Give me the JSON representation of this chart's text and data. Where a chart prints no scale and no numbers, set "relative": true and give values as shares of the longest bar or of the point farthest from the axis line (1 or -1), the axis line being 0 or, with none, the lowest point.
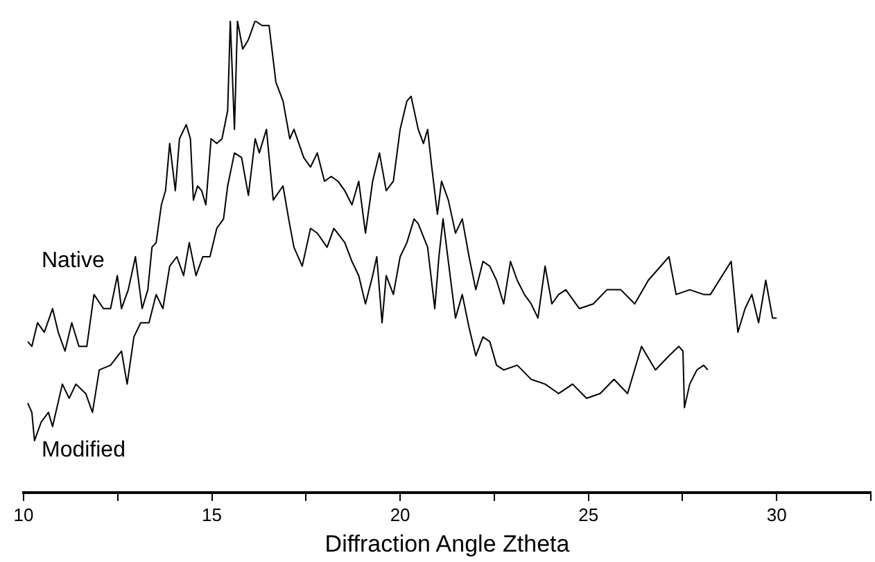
{
  "chart_data": {
    "type": "line",
    "relative": true,
    "xlabel": "Diffraction Angle Ztheta",
    "xlim": [
      10,
      32.5
    ],
    "xticks": [
      10,
      {
        "value": 12.5,
        "label": null
      },
      15,
      {
        "value": 17.5,
        "label": null
      },
      20,
      {
        "value": 22.5,
        "label": null
      },
      25,
      {
        "value": 27.5,
        "label": null
      },
      30,
      {
        "value": 32.5,
        "label": null
      }
    ],
    "grid": false,
    "legend": false,
    "marker": "none",
    "line_style": "solid",
    "series": [
      {
        "name": "Native",
        "color": "#000000",
        "x": [
          10.11,
          10.22,
          10.37,
          10.55,
          10.77,
          10.92,
          11.1,
          11.28,
          11.47,
          11.68,
          11.87,
          12.12,
          12.31,
          12.49,
          12.6,
          12.78,
          12.97,
          13.15,
          13.3,
          13.41,
          13.52,
          13.66,
          13.77,
          13.88,
          14.03,
          14.14,
          14.32,
          14.43,
          14.51,
          14.62,
          14.73,
          14.84,
          14.98,
          15.13,
          15.27,
          15.42,
          15.49,
          15.6,
          15.68,
          15.82,
          15.97,
          16.15,
          16.33,
          16.52,
          16.7,
          16.89,
          17.07,
          17.18,
          17.44,
          17.62,
          17.8,
          17.99,
          18.17,
          18.35,
          18.53,
          18.72,
          18.9,
          19.08,
          19.27,
          19.45,
          19.63,
          19.82,
          20.0,
          20.18,
          20.29,
          20.48,
          20.62,
          20.73,
          20.84,
          20.99,
          21.1,
          21.28,
          21.47,
          21.65,
          21.83,
          22.01,
          22.2,
          22.38,
          22.56,
          22.75,
          22.93,
          23.11,
          23.3,
          23.48,
          23.66,
          23.85,
          24.03,
          24.21,
          24.4,
          24.76,
          25.13,
          25.49,
          25.86,
          26.23,
          26.59,
          27.14,
          27.33,
          27.69,
          28.06,
          28.24,
          28.79,
          28.97,
          29.16,
          29.34,
          29.52,
          29.71,
          29.89,
          30.0
        ],
        "values": [
          0.32,
          0.31,
          0.36,
          0.34,
          0.39,
          0.34,
          0.3,
          0.36,
          0.31,
          0.31,
          0.42,
          0.39,
          0.39,
          0.46,
          0.39,
          0.43,
          0.5,
          0.39,
          0.43,
          0.52,
          0.53,
          0.61,
          0.64,
          0.74,
          0.64,
          0.75,
          0.78,
          0.75,
          0.62,
          0.65,
          0.64,
          0.61,
          0.75,
          0.74,
          0.75,
          0.81,
          1.0,
          0.77,
          1.0,
          0.94,
          0.96,
          1.0,
          0.99,
          0.99,
          0.87,
          0.83,
          0.75,
          0.77,
          0.71,
          0.69,
          0.72,
          0.66,
          0.67,
          0.66,
          0.64,
          0.61,
          0.66,
          0.55,
          0.66,
          0.72,
          0.64,
          0.66,
          0.77,
          0.83,
          0.84,
          0.77,
          0.74,
          0.77,
          0.69,
          0.59,
          0.66,
          0.62,
          0.55,
          0.58,
          0.5,
          0.43,
          0.49,
          0.48,
          0.45,
          0.4,
          0.49,
          0.45,
          0.42,
          0.4,
          0.37,
          0.48,
          0.4,
          0.42,
          0.43,
          0.39,
          0.4,
          0.43,
          0.43,
          0.4,
          0.45,
          0.5,
          0.42,
          0.43,
          0.42,
          0.42,
          0.49,
          0.34,
          0.39,
          0.42,
          0.36,
          0.45,
          0.37,
          0.37
        ]
      },
      {
        "name": "Modified",
        "color": "#000000",
        "x": [
          10.11,
          10.22,
          10.29,
          10.47,
          10.66,
          10.77,
          11.03,
          11.21,
          11.39,
          11.65,
          11.83,
          12.01,
          12.31,
          12.6,
          12.75,
          12.93,
          13.11,
          13.33,
          13.52,
          13.7,
          13.88,
          14.07,
          14.25,
          14.4,
          14.58,
          14.76,
          14.95,
          15.13,
          15.31,
          15.42,
          15.6,
          15.79,
          15.97,
          16.15,
          16.26,
          16.45,
          16.63,
          16.89,
          17.04,
          17.18,
          17.4,
          17.62,
          17.8,
          18.06,
          18.24,
          18.53,
          18.72,
          18.9,
          19.08,
          19.27,
          19.38,
          19.52,
          19.63,
          19.82,
          20.0,
          20.18,
          20.37,
          20.48,
          20.73,
          20.92,
          21.03,
          21.14,
          21.28,
          21.47,
          21.65,
          21.83,
          22.01,
          22.2,
          22.38,
          22.56,
          22.75,
          23.11,
          23.48,
          23.85,
          24.21,
          24.58,
          24.95,
          25.31,
          25.68,
          26.04,
          26.41,
          26.78,
          27.14,
          27.4,
          27.51,
          27.55,
          27.69,
          27.88,
          28.06,
          28.17
        ],
        "values": [
          0.19,
          0.17,
          0.11,
          0.15,
          0.17,
          0.14,
          0.23,
          0.2,
          0.23,
          0.21,
          0.17,
          0.26,
          0.27,
          0.3,
          0.23,
          0.33,
          0.36,
          0.36,
          0.42,
          0.39,
          0.48,
          0.5,
          0.46,
          0.53,
          0.46,
          0.5,
          0.5,
          0.56,
          0.58,
          0.65,
          0.72,
          0.71,
          0.63,
          0.75,
          0.72,
          0.77,
          0.62,
          0.65,
          0.58,
          0.52,
          0.48,
          0.56,
          0.55,
          0.52,
          0.56,
          0.53,
          0.49,
          0.46,
          0.4,
          0.46,
          0.5,
          0.36,
          0.46,
          0.42,
          0.5,
          0.53,
          0.58,
          0.57,
          0.52,
          0.39,
          0.5,
          0.58,
          0.49,
          0.37,
          0.42,
          0.35,
          0.29,
          0.33,
          0.32,
          0.27,
          0.26,
          0.27,
          0.24,
          0.23,
          0.21,
          0.23,
          0.2,
          0.21,
          0.24,
          0.21,
          0.31,
          0.26,
          0.29,
          0.31,
          0.3,
          0.18,
          0.23,
          0.26,
          0.27,
          0.26
        ]
      }
    ]
  }
}
